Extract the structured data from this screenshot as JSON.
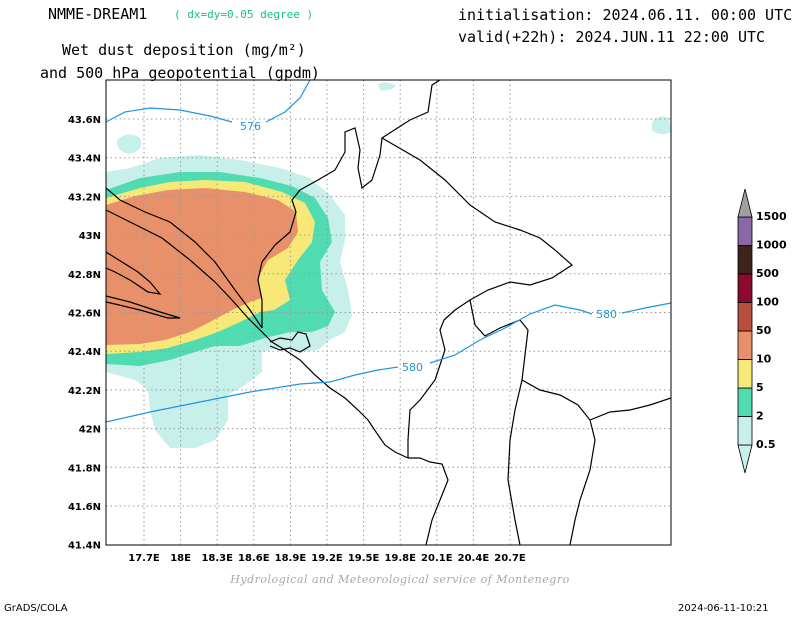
{
  "header": {
    "model_name": "NMME-DREAM1",
    "resolution": "( dx=dy=0.05 degree )",
    "title_line1": "Wet dust deposition (mg/m²)",
    "title_line2": "and 500 hPa geopotential (gpdm)",
    "init_line": "initialisation: 2024.06.11. 00:00 UTC",
    "valid_line": "valid(+22h): 2024.JUN.11 22:00 UTC"
  },
  "map": {
    "lon_labels": [
      "17.7E",
      "18E",
      "18.3E",
      "18.6E",
      "18.9E",
      "19.2E",
      "19.5E",
      "19.8E",
      "20.1E",
      "20.4E",
      "20.7E"
    ],
    "lat_labels": [
      "43.6N",
      "43.4N",
      "43.2N",
      "43N",
      "42.8N",
      "42.6N",
      "42.4N",
      "42.2N",
      "42N",
      "41.8N",
      "41.6N",
      "41.4N"
    ],
    "contour_labels": [
      "576",
      "580",
      "580"
    ],
    "contour_color": "#1e96e0"
  },
  "legend": {
    "levels": [
      "0.5",
      "2",
      "5",
      "10",
      "50",
      "100",
      "500",
      "1000",
      "1500"
    ],
    "colors": [
      "#c8f0ea",
      "#50dcb0",
      "#f8e878",
      "#e8906a",
      "#b85040",
      "#8a0a30",
      "#3c2418",
      "#8a68a8",
      "#a0a0a0"
    ]
  },
  "footer": {
    "credit": "Hydrological and Meteorological service of Montenegro",
    "left": "GrADS/COLA",
    "right": "2024-06-11-10:21"
  }
}
